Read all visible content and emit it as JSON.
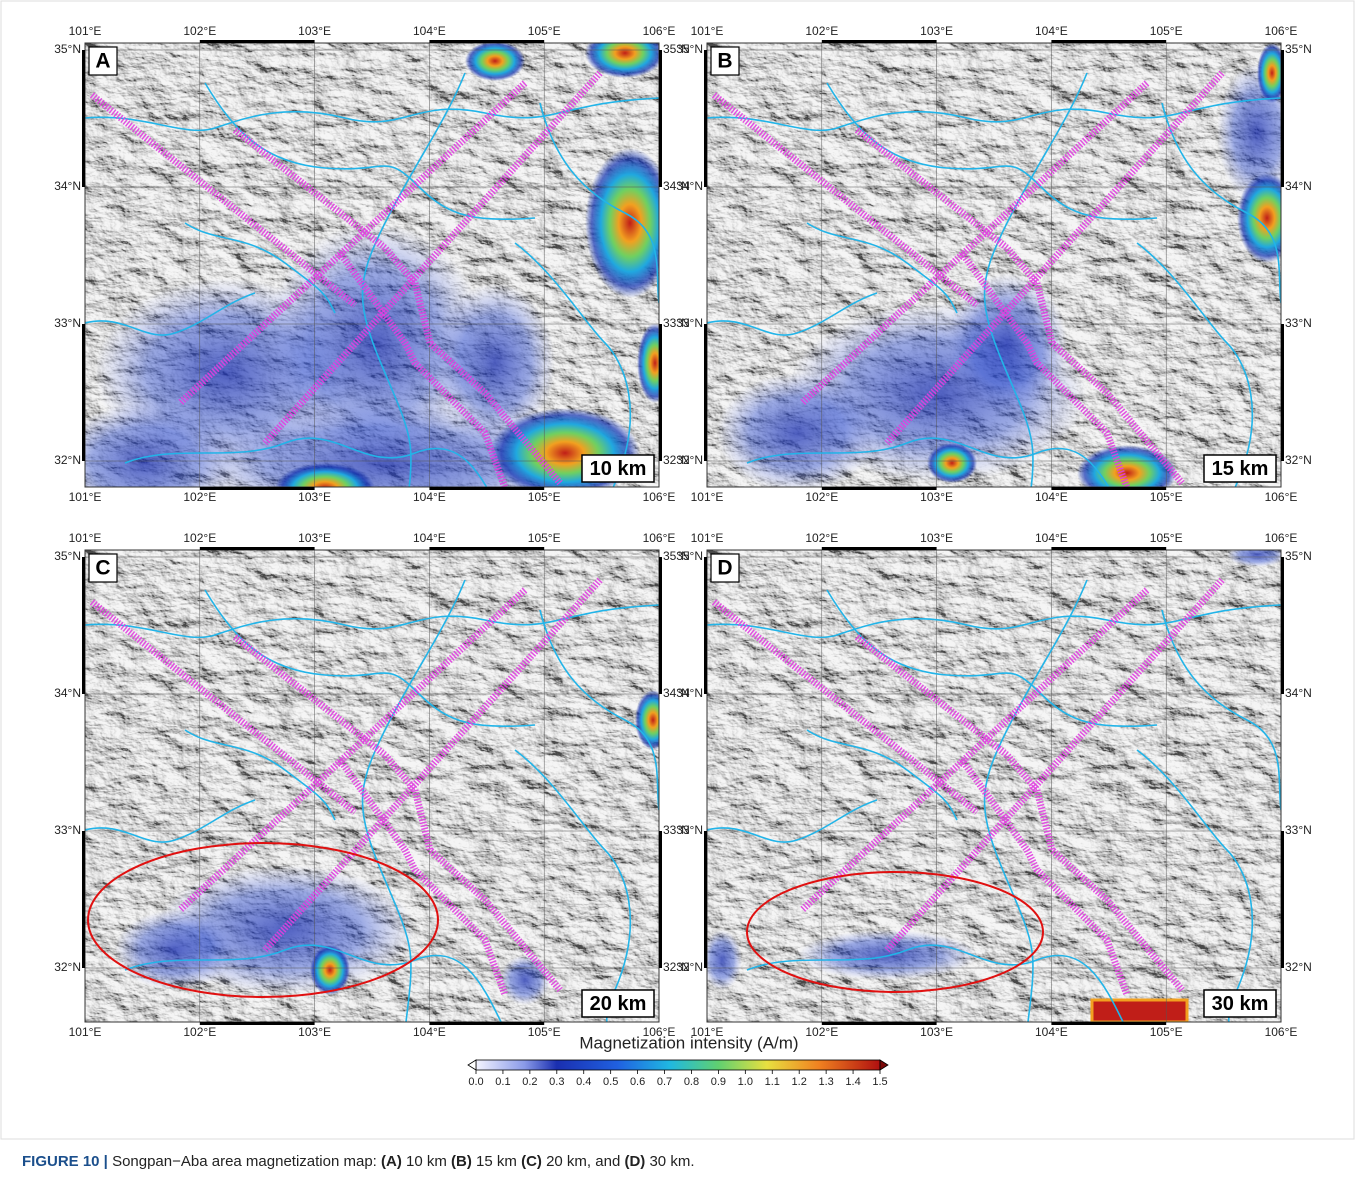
{
  "figure": {
    "panels": [
      {
        "letter": "A",
        "depth": "10 km"
      },
      {
        "letter": "B",
        "depth": "15 km"
      },
      {
        "letter": "C",
        "depth": "20 km"
      },
      {
        "letter": "D",
        "depth": "30 km"
      }
    ],
    "lon_labels": [
      "101°E",
      "102°E",
      "103°E",
      "104°E",
      "105°E",
      "106°E"
    ],
    "lat_labels": [
      "35°N",
      "34°N",
      "33°N",
      "32°N"
    ],
    "colorbar": {
      "title": "Magnetization intensity (A/m)",
      "ticks": [
        {
          "value": 0,
          "label": "0.0"
        },
        0.1,
        0.2,
        0.3,
        0.4,
        0.5,
        0.6,
        0.7,
        0.8,
        0.9,
        {
          "value": 1,
          "label": "1.0"
        },
        1.1,
        1.2,
        1.3,
        1.4,
        1.5
      ]
    },
    "caption": {
      "label": "FIGURE 10 |",
      "parts": [
        "Songpan−Aba area magnetization map:",
        "(A)",
        "10 km",
        "(B)",
        "15 km",
        "(C)",
        "20 km, and",
        "(D)",
        "30 km."
      ]
    }
  }
}
